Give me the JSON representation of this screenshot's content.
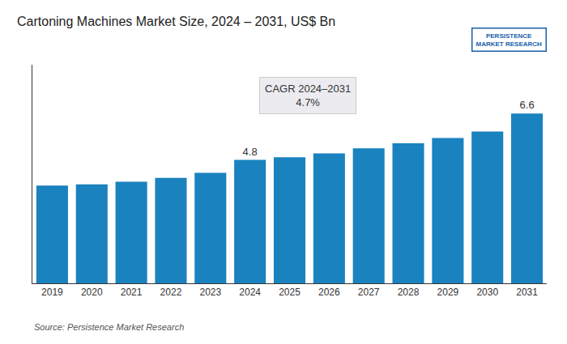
{
  "chart_data": {
    "type": "bar",
    "title": "Cartoning Machines Market Size, 2024 – 2031, US$ Bn",
    "categories": [
      "2019",
      "2020",
      "2021",
      "2022",
      "2023",
      "2024",
      "2025",
      "2026",
      "2027",
      "2028",
      "2029",
      "2030",
      "2031"
    ],
    "values": [
      3.8,
      3.85,
      3.95,
      4.1,
      4.3,
      4.8,
      4.9,
      5.05,
      5.25,
      5.45,
      5.65,
      5.9,
      6.6
    ],
    "value_labels": [
      null,
      null,
      null,
      null,
      null,
      "4.8",
      null,
      null,
      null,
      null,
      null,
      null,
      "6.6"
    ],
    "color": "#1a82be",
    "ylim": [
      0,
      8.5
    ],
    "grid": false,
    "tick_labels": "x",
    "annotations": [
      "CAGR 2024–2031\n4.7%",
      "Source: Persistence Market Research",
      "PERSISTENCE\nMARKET RESEARCH"
    ]
  }
}
